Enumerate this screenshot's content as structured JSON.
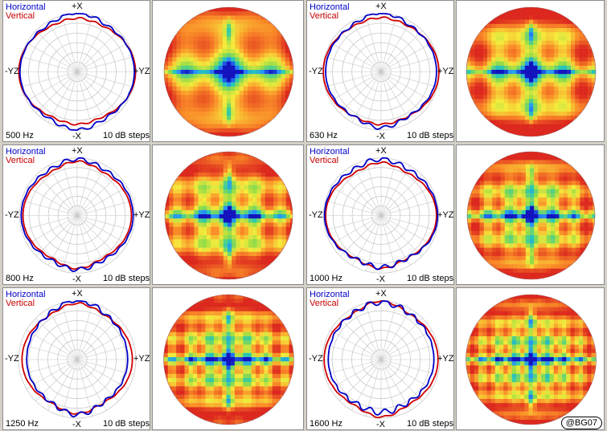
{
  "legend": {
    "horizontal": "Horizontal",
    "vertical": "Vertical"
  },
  "axes": {
    "top": "+X",
    "bottom": "-X",
    "left": "-YZ",
    "right": "+YZ"
  },
  "steps": "10 dB steps",
  "credit": "@BG07",
  "colors": {
    "horizontal": "#0000c8",
    "vertical": "#d00000",
    "grid": "#c8c8c8"
  },
  "chart_data": [
    {
      "type": "polar",
      "frequency": "500 Hz",
      "scale_db_per_ring": 10,
      "rings": 6,
      "series": [
        {
          "name": "Horizontal",
          "r_top": 0.92,
          "r_side": 0.98,
          "r_bottom": 0.9,
          "lobe": 0.1,
          "ripple": 0.03
        },
        {
          "name": "Vertical",
          "r_top": 0.86,
          "r_side": 1.0,
          "r_bottom": 0.84,
          "lobe": 0.06,
          "ripple": 0.015
        }
      ]
    },
    {
      "type": "polar",
      "frequency": "630 Hz",
      "scale_db_per_ring": 10,
      "rings": 6,
      "series": [
        {
          "name": "Horizontal",
          "r_top": 0.92,
          "r_side": 0.95,
          "r_bottom": 0.86,
          "lobe": 0.1,
          "ripple": 0.03
        },
        {
          "name": "Vertical",
          "r_top": 0.88,
          "r_side": 0.99,
          "r_bottom": 0.85,
          "lobe": 0.05,
          "ripple": 0.015
        }
      ]
    },
    {
      "type": "polar",
      "frequency": "800 Hz",
      "scale_db_per_ring": 10,
      "rings": 6,
      "series": [
        {
          "name": "Horizontal",
          "r_top": 0.9,
          "r_side": 0.97,
          "r_bottom": 0.86,
          "lobe": 0.08,
          "ripple": 0.035
        },
        {
          "name": "Vertical",
          "r_top": 0.84,
          "r_side": 0.94,
          "r_bottom": 0.82,
          "lobe": 0.1,
          "ripple": 0.015
        }
      ]
    },
    {
      "type": "polar",
      "frequency": "1000 Hz",
      "scale_db_per_ring": 10,
      "rings": 6,
      "series": [
        {
          "name": "Horizontal",
          "r_top": 0.9,
          "r_side": 0.98,
          "r_bottom": 0.82,
          "lobe": 0.08,
          "ripple": 0.04
        },
        {
          "name": "Vertical",
          "r_top": 0.82,
          "r_side": 0.96,
          "r_bottom": 0.82,
          "lobe": 0.1,
          "ripple": 0.015
        }
      ]
    },
    {
      "type": "polar",
      "frequency": "1250 Hz",
      "scale_db_per_ring": 10,
      "rings": 6,
      "series": [
        {
          "name": "Horizontal",
          "r_top": 0.92,
          "r_side": 0.86,
          "r_bottom": 0.84,
          "lobe": 0.1,
          "ripple": 0.04
        },
        {
          "name": "Vertical",
          "r_top": 0.86,
          "r_side": 0.94,
          "r_bottom": 0.82,
          "lobe": 0.1,
          "ripple": 0.015
        }
      ]
    },
    {
      "type": "polar",
      "frequency": "1600 Hz",
      "scale_db_per_ring": 10,
      "rings": 6,
      "series": [
        {
          "name": "Horizontal",
          "r_top": 0.92,
          "r_side": 0.9,
          "r_bottom": 0.84,
          "lobe": 0.06,
          "ripple": 0.05
        },
        {
          "name": "Vertical",
          "r_top": 0.88,
          "r_side": 0.97,
          "r_bottom": 0.86,
          "lobe": 0.12,
          "ripple": 0.015
        }
      ]
    }
  ]
}
